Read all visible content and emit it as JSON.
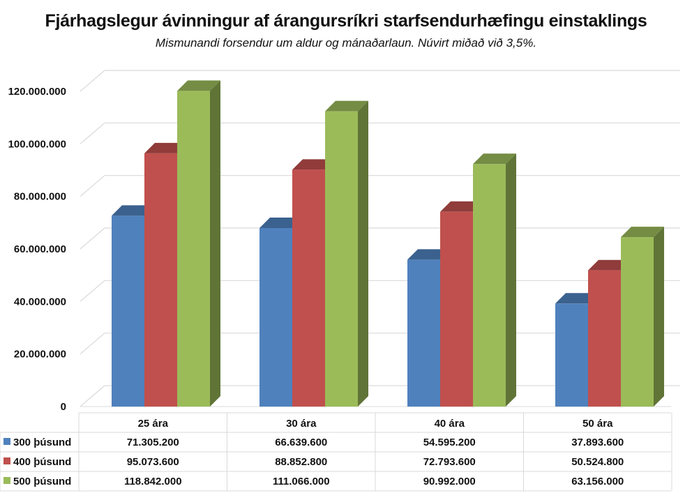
{
  "chart_data": {
    "type": "bar",
    "style": "3d-clustered-column-with-data-table",
    "title": "Fjárhagslegur ávinningur af árangursríkri starfsendurhæfingu einstaklings",
    "subtitle": "Mismunandi forsendur um aldur og mánaðarlaun. Núvirt miðað við 3,5%.",
    "categories": [
      "25 ára",
      "30 ára",
      "40 ára",
      "50 ára"
    ],
    "series": [
      {
        "name": "300 þúsund",
        "color": "#4f81bd",
        "values": [
          71305200,
          66639600,
          54595200,
          37893600
        ],
        "labels": [
          "71.305.200",
          "66.639.600",
          "54.595.200",
          "37.893.600"
        ]
      },
      {
        "name": "400 þúsund",
        "color": "#c0504d",
        "values": [
          95073600,
          88852800,
          72793600,
          50524800
        ],
        "labels": [
          "95.073.600",
          "88.852.800",
          "72.793.600",
          "50.524.800"
        ]
      },
      {
        "name": "500 þúsund",
        "color": "#9bbb59",
        "values": [
          118842000,
          111066000,
          90992000,
          63156000
        ],
        "labels": [
          "118.842.000",
          "111.066.000",
          "90.992.000",
          "63.156.000"
        ]
      }
    ],
    "ylim": [
      0,
      120000000
    ],
    "yticks": [
      0,
      20000000,
      40000000,
      60000000,
      80000000,
      100000000,
      120000000
    ],
    "ytick_labels": [
      "0",
      "20.000.000",
      "40.000.000",
      "60.000.000",
      "80.000.000",
      "100.000.000",
      "120.000.000"
    ],
    "grid": true,
    "legend": "data-table"
  }
}
